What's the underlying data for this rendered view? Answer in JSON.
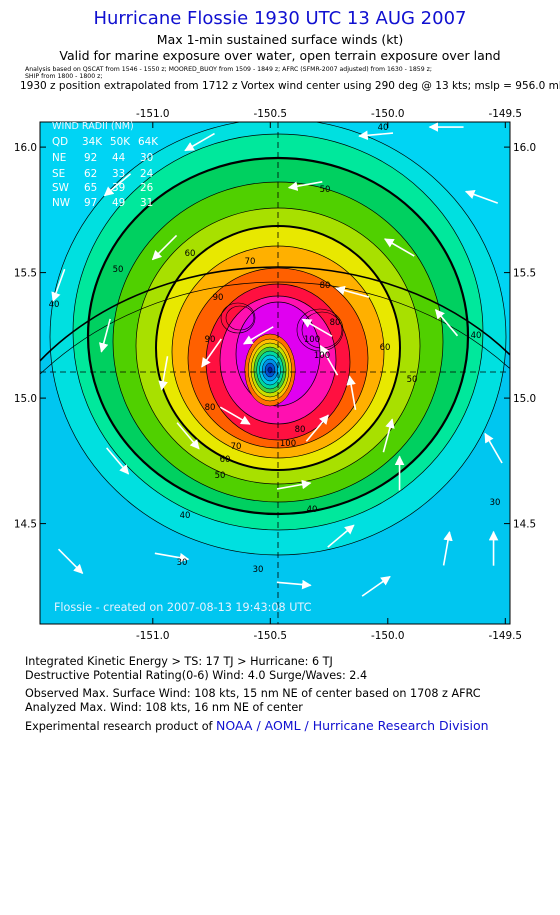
{
  "header": {
    "title": "Hurricane Flossie 1930 UTC 13 AUG 2007",
    "subtitle1": "Max 1-min sustained surface winds (kt)",
    "subtitle2": "Valid for marine exposure over water, open terrain exposure over land",
    "analysis_line1": "Analysis based on QSCAT from 1546 - 1550 z;  MOORED_BUOY from 1509 - 1849 z;  AFRC (SFMR-2007 adjusted) from 1630 - 1859 z;",
    "analysis_line2": "SHIP from 1800 - 1800 z;",
    "position_line": "1930 z position extrapolated from 1712 z Vortex wind center using 290 deg @ 13 kts; mslp = 956.0 mb"
  },
  "wind_radii": {
    "title": "WIND RADII (NM)",
    "columns": [
      "QD",
      "34K",
      "50K",
      "64K"
    ],
    "rows": [
      [
        "NE",
        "92",
        "44",
        "30"
      ],
      [
        "SE",
        "62",
        "33",
        "24"
      ],
      [
        "SW",
        "65",
        "39",
        "26"
      ],
      [
        "NW",
        "97",
        "49",
        "31"
      ]
    ]
  },
  "watermark": "Flossie - created on 2007-08-13 19:43:08 UTC",
  "chart_data": {
    "type": "contour",
    "x_ticks": [
      "-151.0",
      "-150.5",
      "-150.0",
      "-149.5"
    ],
    "y_ticks": [
      "16.0",
      "15.5",
      "15.0",
      "14.5"
    ],
    "xlim": [
      -151.48,
      -149.48
    ],
    "ylim": [
      14.1,
      16.1
    ],
    "center": {
      "lon": -150.45,
      "lat": 15.1
    },
    "max_wind_kt": 108,
    "contour_labels": [
      "30",
      "30",
      "30",
      "40",
      "40",
      "40",
      "40",
      "40",
      "50",
      "50",
      "50",
      "50",
      "60",
      "60",
      "60",
      "70",
      "70",
      "80",
      "80",
      "90",
      "100",
      "100",
      "100",
      "90",
      "80",
      "80"
    ],
    "wind_vectors": [
      {
        "lon": -151.35,
        "lat": 14.35,
        "dir": 135
      },
      {
        "lon": -150.92,
        "lat": 14.37,
        "dir": 100
      },
      {
        "lon": -150.4,
        "lat": 14.26,
        "dir": 95
      },
      {
        "lon": -150.05,
        "lat": 14.25,
        "dir": 55
      },
      {
        "lon": -150.2,
        "lat": 14.45,
        "dir": 50
      },
      {
        "lon": -149.75,
        "lat": 14.4,
        "dir": 10
      },
      {
        "lon": -149.95,
        "lat": 14.7,
        "dir": 0
      },
      {
        "lon": -149.55,
        "lat": 14.4,
        "dir": 0
      },
      {
        "lon": -149.55,
        "lat": 14.8,
        "dir": 330
      },
      {
        "lon": -150.4,
        "lat": 14.65,
        "dir": 80
      },
      {
        "lon": -151.15,
        "lat": 14.75,
        "dir": 140
      },
      {
        "lon": -150.85,
        "lat": 14.85,
        "dir": 140
      },
      {
        "lon": -150.65,
        "lat": 14.93,
        "dir": 120
      },
      {
        "lon": -150.3,
        "lat": 14.88,
        "dir": 40
      },
      {
        "lon": -150.0,
        "lat": 14.85,
        "dir": 15
      },
      {
        "lon": -150.15,
        "lat": 15.02,
        "dir": 350
      },
      {
        "lon": -150.25,
        "lat": 15.15,
        "dir": 330
      },
      {
        "lon": -150.3,
        "lat": 15.28,
        "dir": 300
      },
      {
        "lon": -150.55,
        "lat": 15.25,
        "dir": 240
      },
      {
        "lon": -150.75,
        "lat": 15.18,
        "dir": 215
      },
      {
        "lon": -150.95,
        "lat": 15.1,
        "dir": 190
      },
      {
        "lon": -151.2,
        "lat": 15.25,
        "dir": 195
      },
      {
        "lon": -151.4,
        "lat": 15.45,
        "dir": 200
      },
      {
        "lon": -150.95,
        "lat": 15.6,
        "dir": 225
      },
      {
        "lon": -151.15,
        "lat": 15.85,
        "dir": 230
      },
      {
        "lon": -150.8,
        "lat": 16.02,
        "dir": 240
      },
      {
        "lon": -150.35,
        "lat": 15.85,
        "dir": 260
      },
      {
        "lon": -150.05,
        "lat": 16.05,
        "dir": 265
      },
      {
        "lon": -149.75,
        "lat": 16.08,
        "dir": 270
      },
      {
        "lon": -149.6,
        "lat": 15.8,
        "dir": 290
      },
      {
        "lon": -149.95,
        "lat": 15.6,
        "dir": 300
      },
      {
        "lon": -149.75,
        "lat": 15.3,
        "dir": 320
      },
      {
        "lon": -150.15,
        "lat": 15.42,
        "dir": 285
      }
    ]
  },
  "footer": {
    "ike": "Integrated Kinetic Energy > TS: 17 TJ   > Hurricane: 6 TJ",
    "dpr": "Destructive Potential Rating(0-6)   Wind: 4.0  Surge/Waves: 2.4",
    "observed": "Observed Max. Surface Wind: 108 kts, 15 nm NE of center based on 1708 z AFRC",
    "analyzed": "Analyzed Max. Wind: 108 kts, 16 nm NE of center",
    "experimental": "Experimental research product of ",
    "org": "NOAA / AOML / Hurricane Research Division"
  }
}
